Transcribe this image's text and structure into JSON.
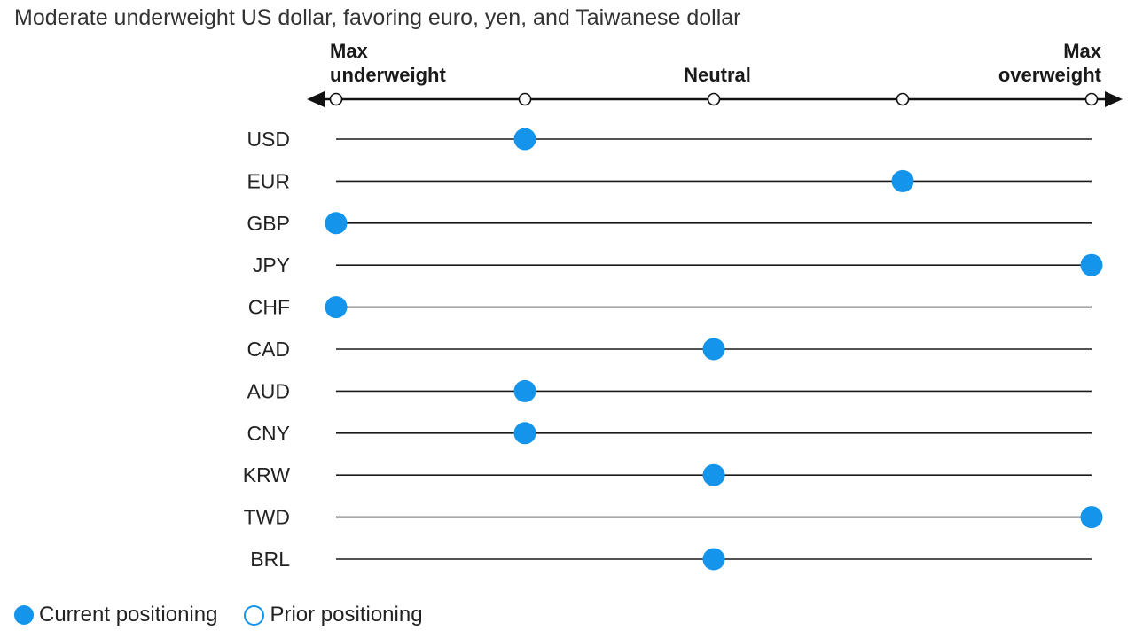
{
  "chart_data": {
    "type": "scatter",
    "title": "Moderate underweight US dollar, favoring euro, yen, and Taiwanese dollar",
    "scale": {
      "min": 0,
      "max": 4,
      "ticks": [
        0,
        1,
        2,
        3,
        4
      ],
      "labels": [
        {
          "value": 0,
          "lines": [
            "Max",
            "underweight"
          ]
        },
        {
          "value": 2,
          "lines": [
            "Neutral"
          ]
        },
        {
          "value": 4,
          "lines": [
            "Max",
            "overweight"
          ]
        }
      ]
    },
    "categories": [
      "USD",
      "EUR",
      "GBP",
      "JPY",
      "CHF",
      "CAD",
      "AUD",
      "CNY",
      "KRW",
      "TWD",
      "BRL"
    ],
    "series": [
      {
        "name": "Current positioning",
        "values": [
          1,
          3,
          0,
          4,
          0,
          2,
          1,
          1,
          2,
          4,
          2
        ]
      },
      {
        "name": "Prior positioning",
        "values": []
      }
    ],
    "grid": false,
    "legend_position": "bottom-left"
  },
  "legend": {
    "current_label": "Current positioning",
    "prior_label": "Prior positioning"
  },
  "colors": {
    "current": "#1494ea",
    "prior_stroke": "#1494ea",
    "axis": "#111111",
    "row_line": "#1a1a1a"
  }
}
